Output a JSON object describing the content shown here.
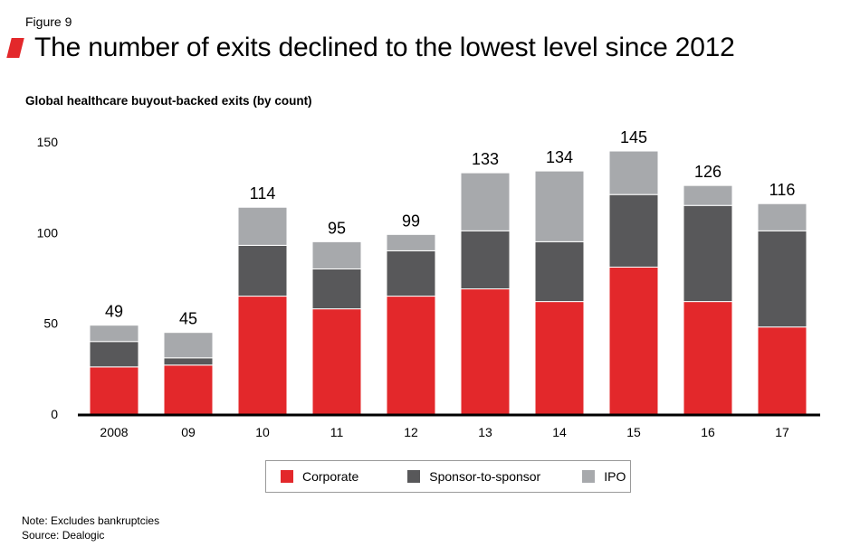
{
  "figure_label": "Figure 9",
  "title": "The number of exits declined to the lowest level since 2012",
  "colors": {
    "accent": "#e3282b",
    "corporate": "#e3282b",
    "sponsor": "#58585a",
    "ipo": "#a7a9ac",
    "axis": "#000000"
  },
  "chart_data": {
    "type": "bar",
    "stacked": true,
    "title": "Global healthcare buyout-backed exits (by count)",
    "xlabel": "",
    "ylabel": "",
    "ylim": [
      0,
      150
    ],
    "yticks": [
      0,
      50,
      100,
      150
    ],
    "grid": false,
    "legend_position": "bottom",
    "categories": [
      "2008",
      "09",
      "10",
      "11",
      "12",
      "13",
      "14",
      "15",
      "16",
      "17"
    ],
    "series": [
      {
        "name": "Corporate",
        "values": [
          26,
          27,
          65,
          58,
          65,
          69,
          62,
          81,
          62,
          48
        ]
      },
      {
        "name": "Sponsor-to-sponsor",
        "values": [
          14,
          4,
          28,
          22,
          25,
          32,
          33,
          40,
          53,
          53
        ]
      },
      {
        "name": "IPO",
        "values": [
          9,
          14,
          21,
          15,
          9,
          32,
          39,
          24,
          11,
          15
        ]
      }
    ],
    "totals": [
      49,
      45,
      114,
      95,
      99,
      133,
      134,
      145,
      126,
      116
    ]
  },
  "legend": [
    {
      "label": "Corporate"
    },
    {
      "label": "Sponsor-to-sponsor"
    },
    {
      "label": "IPO"
    }
  ],
  "notes": {
    "note": "Note: Excludes bankruptcies",
    "source": "Source: Dealogic"
  }
}
